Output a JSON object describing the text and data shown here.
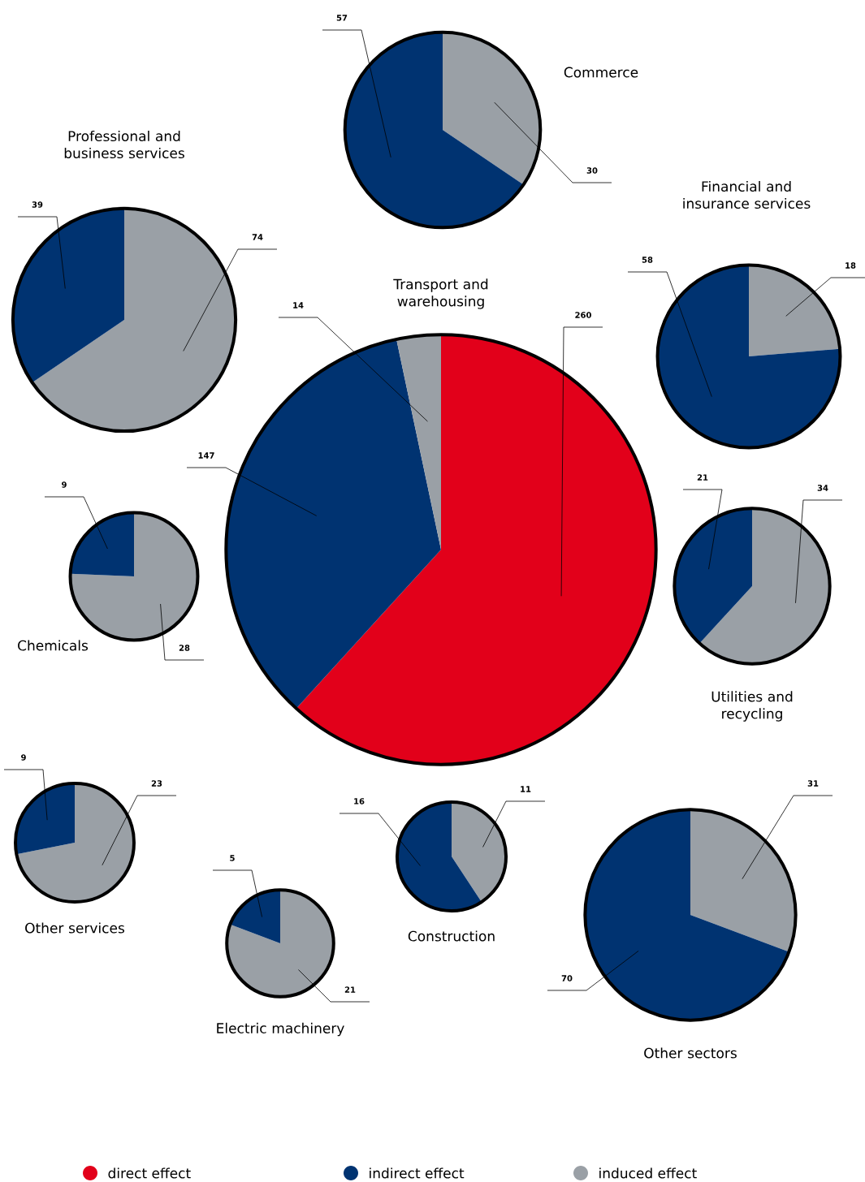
{
  "chart_data": [
    {
      "type": "pie",
      "title": "Commerce",
      "categories": [
        null,
        null
      ],
      "values": [
        30,
        57
      ],
      "colors": [
        "#9aa0a6",
        "#003371"
      ],
      "data_labels": true
    },
    {
      "type": "pie",
      "title": "Professional and business services",
      "categories": [
        null,
        null
      ],
      "values": [
        74,
        39
      ],
      "colors": [
        "#9aa0a6",
        "#003371"
      ],
      "data_labels": true
    },
    {
      "type": "pie",
      "title": "Financial and insurance services",
      "categories": [
        null,
        null
      ],
      "values": [
        18,
        58
      ],
      "colors": [
        "#9aa0a6",
        "#003371"
      ],
      "data_labels": true
    },
    {
      "type": "pie",
      "title": "Transport and warehousing",
      "categories": [
        "direct effect",
        "indirect effect",
        "induced effect"
      ],
      "values": [
        260,
        147,
        14
      ],
      "colors": [
        "#e2001a",
        "#003371",
        "#9aa0a6"
      ],
      "data_labels": true,
      "legend": "bottom"
    },
    {
      "type": "pie",
      "title": "Chemicals",
      "categories": [
        null,
        null
      ],
      "values": [
        28,
        9
      ],
      "colors": [
        "#9aa0a6",
        "#003371"
      ],
      "data_labels": true
    },
    {
      "type": "pie",
      "title": "Utilities and recycling",
      "categories": [
        null,
        null
      ],
      "values": [
        34,
        21
      ],
      "colors": [
        "#9aa0a6",
        "#003371"
      ],
      "data_labels": true
    },
    {
      "type": "pie",
      "title": "Other services",
      "categories": [
        null,
        null
      ],
      "values": [
        23,
        9
      ],
      "colors": [
        "#9aa0a6",
        "#003371"
      ],
      "data_labels": true
    },
    {
      "type": "pie",
      "title": "Electric machinery",
      "categories": [
        null,
        null
      ],
      "values": [
        21,
        5
      ],
      "colors": [
        "#9aa0a6",
        "#003371"
      ],
      "data_labels": true
    },
    {
      "type": "pie",
      "title": "Construction",
      "categories": [
        null,
        null
      ],
      "values": [
        11,
        16
      ],
      "colors": [
        "#9aa0a6",
        "#003371"
      ],
      "data_labels": true
    },
    {
      "type": "pie",
      "title": "Other sectors",
      "categories": [
        null,
        null
      ],
      "values": [
        31,
        70
      ],
      "colors": [
        "#9aa0a6",
        "#003371"
      ],
      "data_labels": true
    }
  ]
}
